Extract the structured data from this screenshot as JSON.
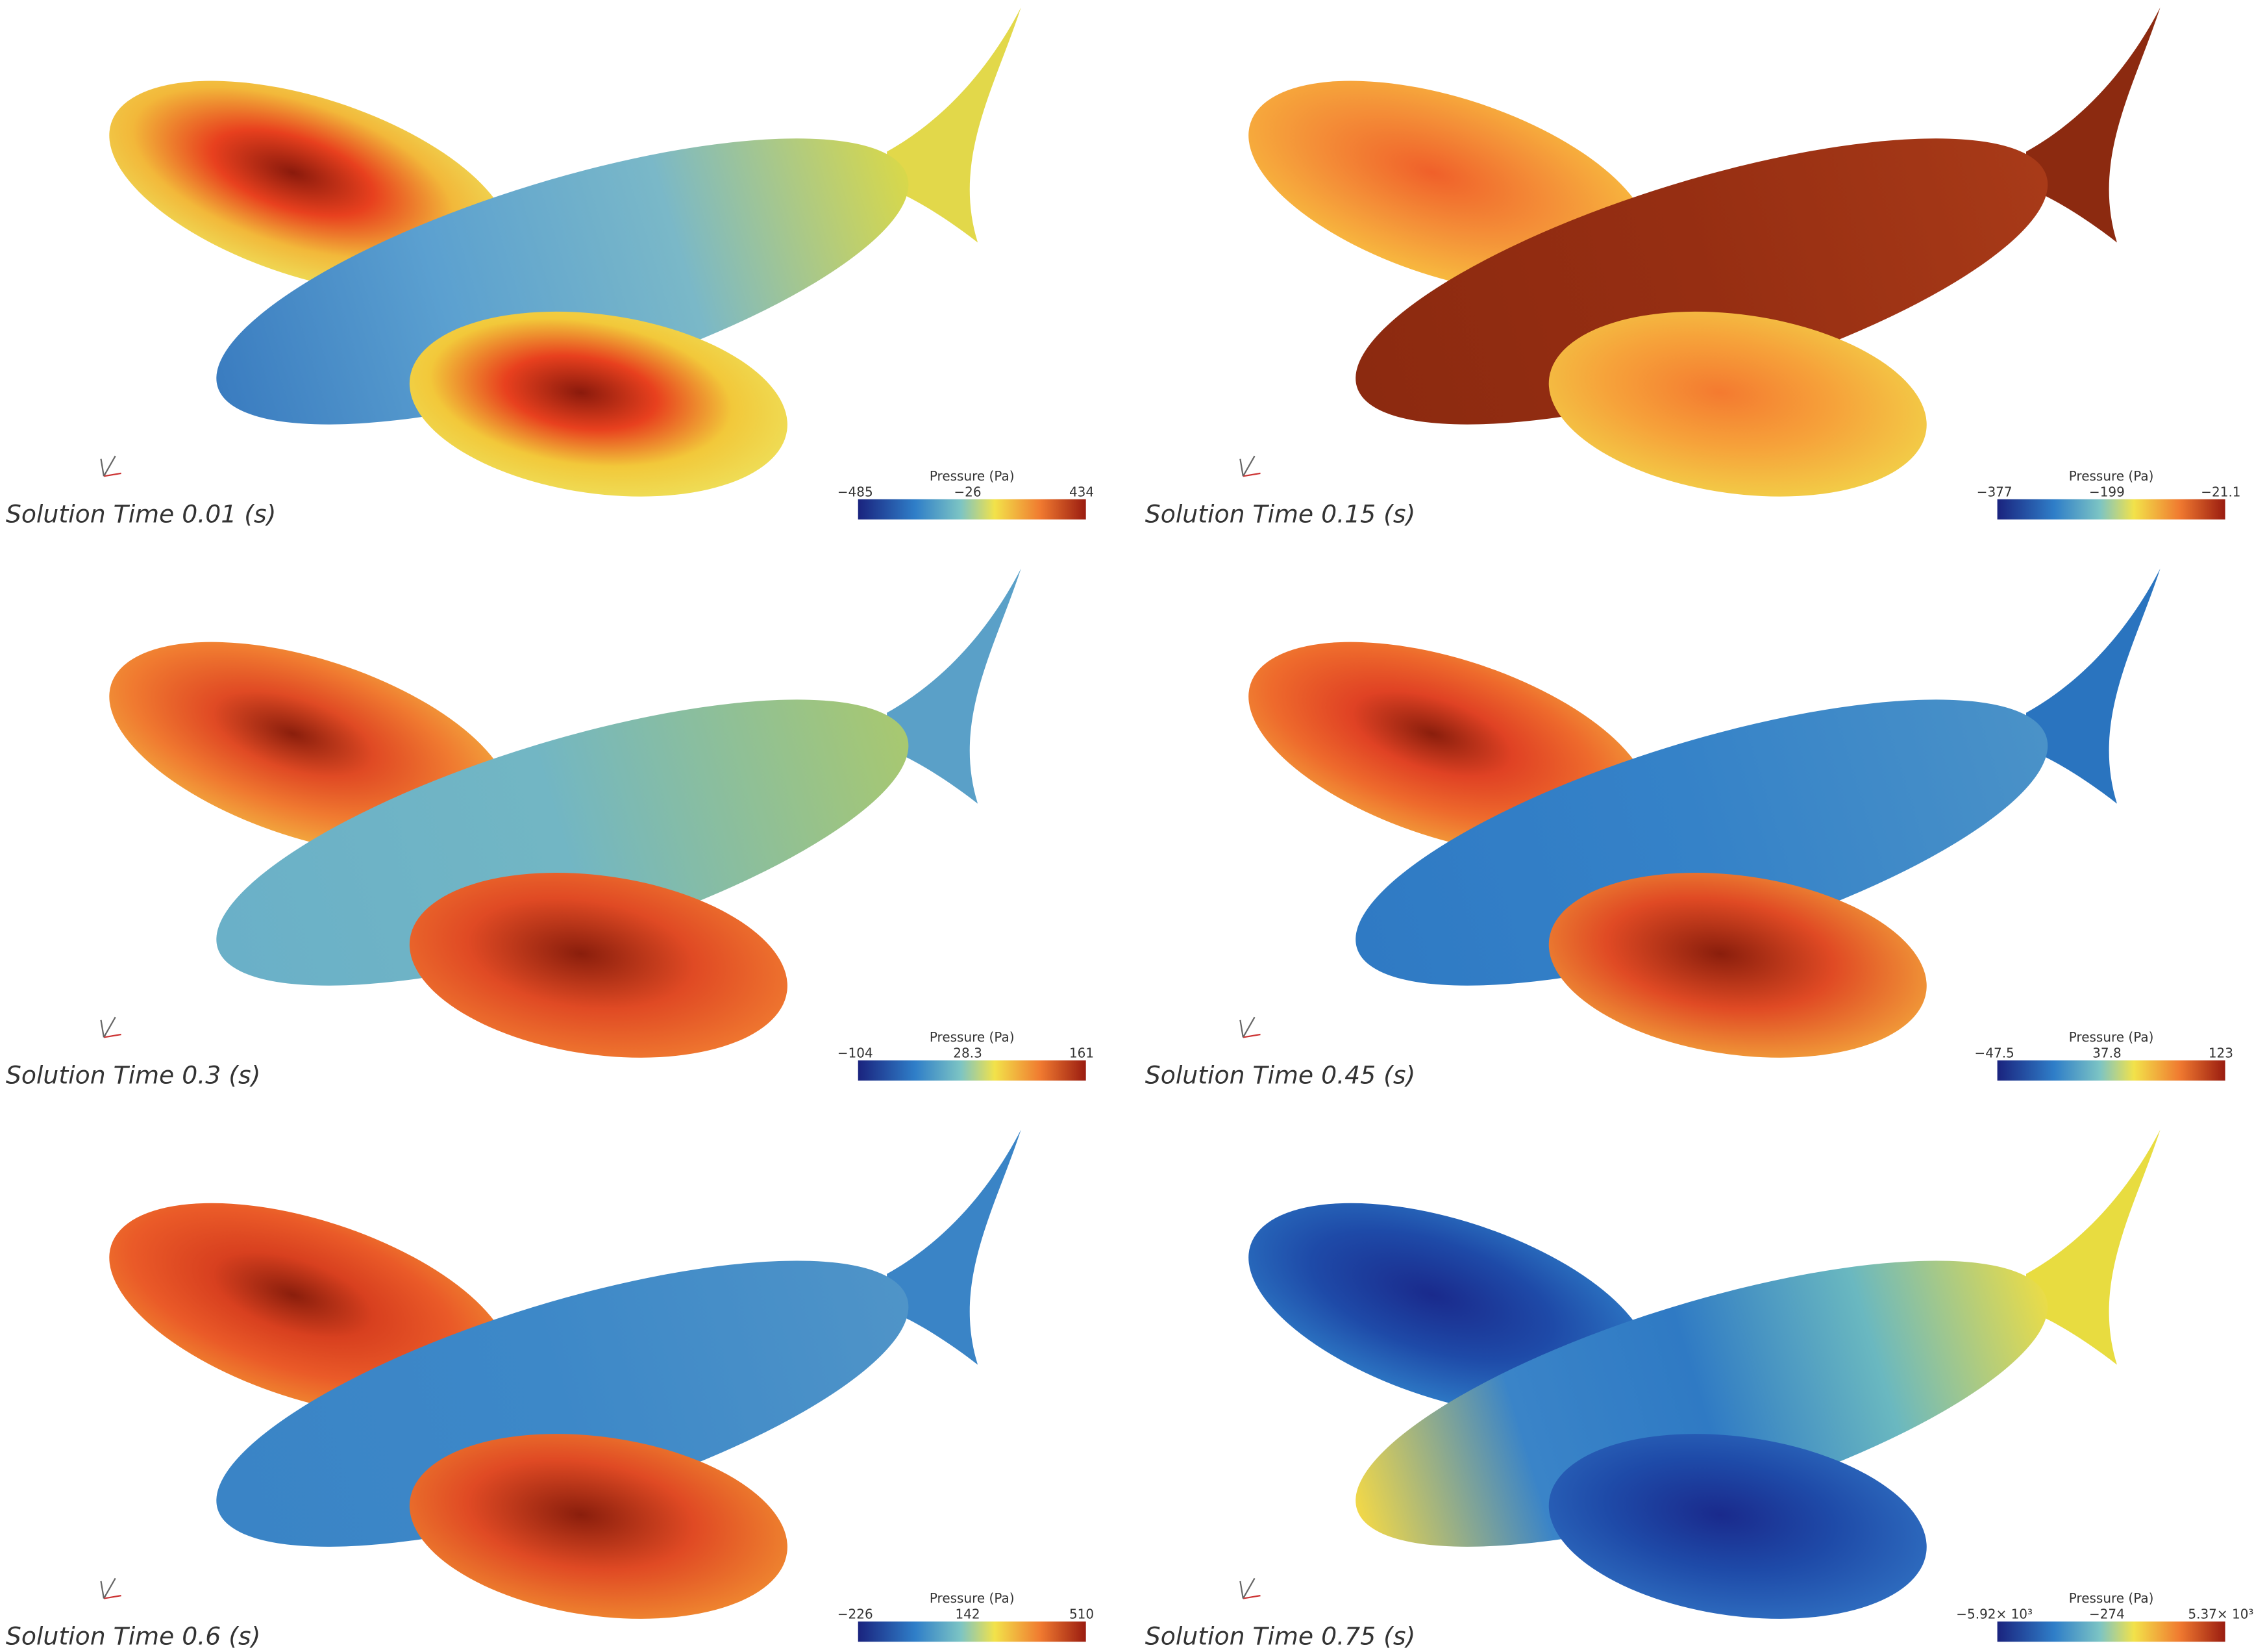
{
  "panels": [
    {
      "caption": "Solution Time 0.01 (s)",
      "legend": {
        "title": "Pressure (Pa)",
        "min": "−485",
        "mid": "−26",
        "max": "434"
      }
    },
    {
      "caption": "Solution Time 0.15 (s)",
      "legend": {
        "title": "Pressure (Pa)",
        "min": "−377",
        "mid": "−199",
        "max": "−21.1"
      }
    },
    {
      "caption": "Solution Time 0.3 (s)",
      "legend": {
        "title": "Pressure (Pa)",
        "min": "−104",
        "mid": "28.3",
        "max": "161"
      }
    },
    {
      "caption": "Solution Time 0.45 (s)",
      "legend": {
        "title": "Pressure (Pa)",
        "min": "−47.5",
        "mid": "37.8",
        "max": "123"
      }
    },
    {
      "caption": "Solution Time 0.6 (s)",
      "legend": {
        "title": "Pressure (Pa)",
        "min": "−226",
        "mid": "142",
        "max": "510"
      }
    },
    {
      "caption": "Solution Time 0.75 (s)",
      "legend": {
        "title": "Pressure (Pa)",
        "min": "−5.92× 10³",
        "mid": "−274",
        "max": "5.37× 10³"
      }
    }
  ]
}
